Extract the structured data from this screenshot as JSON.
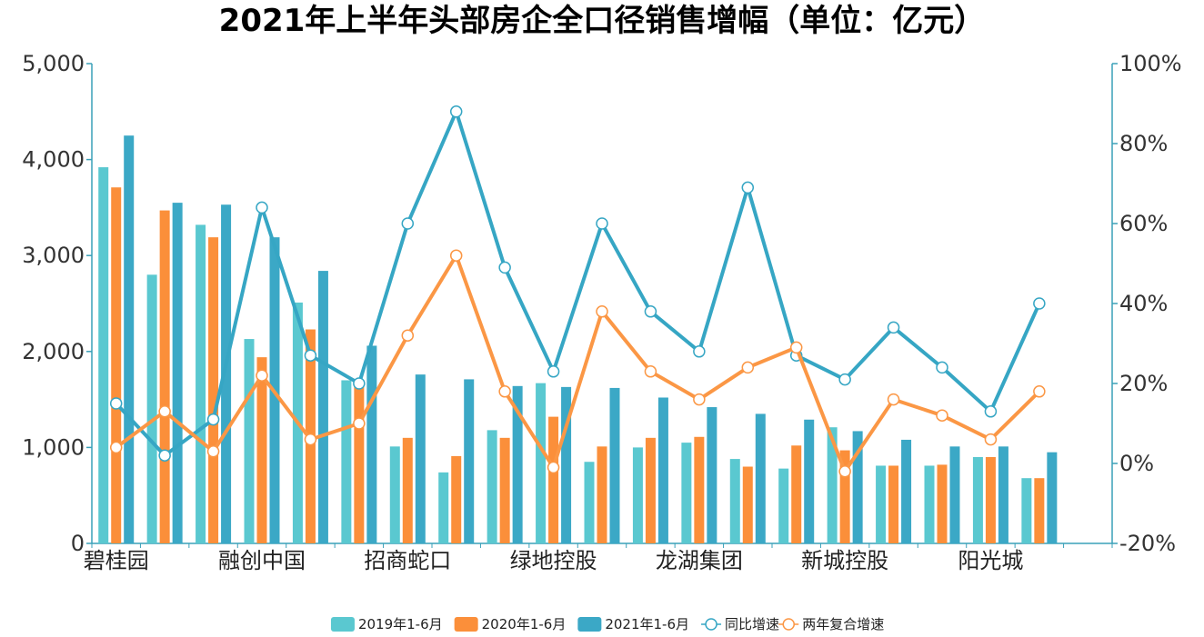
{
  "chart_data": {
    "type": "bar",
    "title": "2021年上半年头部房企全口径销售增幅（单位：亿元）",
    "xlabel": "",
    "ylabel": "",
    "y2label": "",
    "ylim": [
      0,
      5000
    ],
    "y2lim": [
      -20,
      100
    ],
    "yticks": [
      "0",
      "1,000",
      "2,000",
      "3,000",
      "4,000",
      "5,000"
    ],
    "y2ticks": [
      "-20%",
      "0%",
      "20%",
      "40%",
      "60%",
      "80%",
      "100%"
    ],
    "categories": [
      "碧桂园",
      "",
      "",
      "融创中国",
      "",
      "",
      "招商蛇口",
      "",
      "",
      "绿地控股",
      "",
      "",
      "龙湖集团",
      "",
      "",
      "新城控股",
      "",
      "",
      "阳光城",
      "",
      ""
    ],
    "series": [
      {
        "name": "2019年1-6月",
        "type": "bar",
        "axis": "left",
        "color": "#5ac8d0",
        "values": [
          3920,
          2800,
          3320,
          2130,
          2510,
          1700,
          1010,
          740,
          1180,
          1670,
          850,
          1000,
          1050,
          880,
          780,
          1210,
          810,
          810,
          900,
          680,
          0
        ]
      },
      {
        "name": "2020年1-6月",
        "type": "bar",
        "axis": "left",
        "color": "#fb8f3a",
        "values": [
          3710,
          3470,
          3190,
          1940,
          2230,
          1690,
          1100,
          910,
          1100,
          1320,
          1010,
          1100,
          1110,
          800,
          1020,
          970,
          810,
          820,
          900,
          680,
          0
        ]
      },
      {
        "name": "2021年1-6月",
        "type": "bar",
        "axis": "left",
        "color": "#3ba8c6",
        "values": [
          4250,
          3550,
          3530,
          3190,
          2840,
          2060,
          1760,
          1710,
          1640,
          1630,
          1620,
          1520,
          1420,
          1350,
          1290,
          1170,
          1080,
          1010,
          1010,
          950,
          0
        ]
      },
      {
        "name": "同比增速",
        "type": "line",
        "axis": "right",
        "color": "#36a6c4",
        "values": [
          15,
          2,
          11,
          64,
          27,
          20,
          60,
          88,
          49,
          23,
          60,
          38,
          28,
          69,
          27,
          21,
          34,
          24,
          13,
          40,
          null
        ]
      },
      {
        "name": "两年复合增速",
        "type": "line",
        "axis": "right",
        "color": "#fb9745",
        "values": [
          4,
          13,
          3,
          22,
          6,
          10,
          32,
          52,
          18,
          -1,
          38,
          23,
          16,
          24,
          29,
          -2,
          16,
          12,
          6,
          18,
          null
        ]
      }
    ],
    "legend_position": "bottom-center",
    "grid": false
  }
}
